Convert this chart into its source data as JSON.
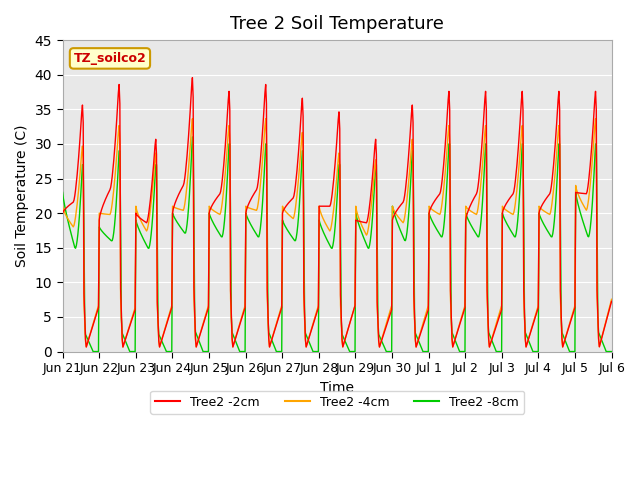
{
  "title": "Tree 2 Soil Temperature",
  "ylabel": "Soil Temperature (C)",
  "xlabel": "Time",
  "annotation": "TZ_soilco2",
  "ylim": [
    0,
    45
  ],
  "bg_color": "#e8e8e8",
  "line_colors": [
    "#ff0000",
    "#ffa500",
    "#00cc00"
  ],
  "line_labels": [
    "Tree2 -2cm",
    "Tree2 -4cm",
    "Tree2 -8cm"
  ],
  "xtick_labels": [
    "Jun 21",
    "Jun 22",
    "Jun 23",
    "Jun 24",
    "Jun 25",
    "Jun 26",
    "Jun 27",
    "Jun 28",
    "Jun 29",
    "Jun 30",
    "Jul 1",
    "Jul 2",
    "Jul 3",
    "Jul 4",
    "Jul 5",
    "Jul 6"
  ],
  "title_fontsize": 13,
  "label_fontsize": 10,
  "tick_fontsize": 9,
  "peak_2cm": [
    36,
    39,
    31,
    40,
    38,
    39,
    37,
    35,
    31,
    36,
    38,
    38,
    38,
    38,
    38
  ],
  "peak_4cm": [
    30,
    33,
    29,
    34,
    33,
    34,
    32,
    29,
    28,
    31,
    33,
    33,
    33,
    33,
    34
  ],
  "peak_8cm": [
    27,
    29,
    27,
    31,
    30,
    30,
    29,
    27,
    27,
    29,
    30,
    30,
    30,
    30,
    30
  ],
  "min_2cm": [
    20,
    19,
    20,
    20,
    20,
    20,
    20,
    21,
    19,
    19,
    20,
    19,
    20,
    20,
    23
  ],
  "min_4cm": [
    21,
    20,
    21,
    21,
    21,
    21,
    21,
    21,
    21,
    21,
    21,
    21,
    21,
    21,
    24
  ],
  "min_8cm": [
    23,
    18,
    19,
    20,
    20,
    20,
    19,
    19,
    20,
    21,
    20,
    20,
    20,
    20,
    23
  ]
}
